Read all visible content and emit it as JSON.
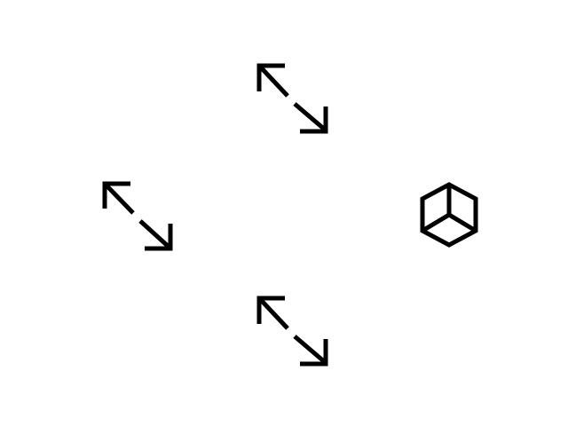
{
  "icons": [
    {
      "id": "resize-top",
      "name": "diagonal-resize-icon"
    },
    {
      "id": "resize-left",
      "name": "diagonal-resize-icon"
    },
    {
      "id": "resize-bottom",
      "name": "diagonal-resize-icon"
    },
    {
      "id": "cube",
      "name": "cube-icon"
    }
  ],
  "colors": {
    "background": "#ffffff",
    "icon_stroke": "#000000"
  }
}
